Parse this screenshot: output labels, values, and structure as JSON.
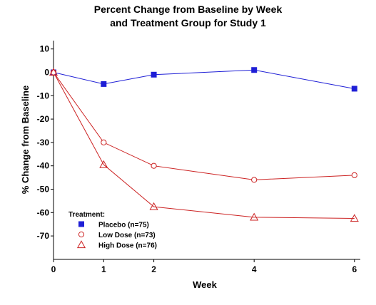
{
  "chart_data": {
    "type": "line",
    "title_lines": [
      "Percent Change from Baseline by Week",
      "and Treatment Group for Study 1"
    ],
    "xlabel": "Week",
    "ylabel": "% Change from Baseline",
    "xlim": [
      0,
      6.1
    ],
    "ylim": [
      -80,
      13
    ],
    "x_ticks": [
      {
        "value": 0,
        "label": "0"
      },
      {
        "value": 1,
        "label": "1"
      },
      {
        "value": 2,
        "label": "2"
      },
      {
        "value": 4,
        "label": "4"
      },
      {
        "value": 6,
        "label": "6"
      }
    ],
    "y_ticks": [
      {
        "value": 10,
        "label": "10"
      },
      {
        "value": 0,
        "label": "0"
      },
      {
        "value": -10,
        "label": "-10"
      },
      {
        "value": -20,
        "label": "-20"
      },
      {
        "value": -30,
        "label": "-30"
      },
      {
        "value": -40,
        "label": "-40"
      },
      {
        "value": -50,
        "label": "-50"
      },
      {
        "value": -60,
        "label": "-60"
      },
      {
        "value": -70,
        "label": "-70"
      }
    ],
    "grid": false,
    "legend_placement": "bottom-left",
    "legend_title": "Treatment:",
    "x": [
      0,
      1,
      2,
      4,
      6
    ],
    "series": [
      {
        "name": "Placebo (n=75)",
        "values": [
          0,
          -5,
          -1,
          1,
          -7
        ],
        "color": "#1f1fd6",
        "marker": "square-filled"
      },
      {
        "name": "Low Dose (n=73)",
        "values": [
          0,
          -30,
          -40,
          -46,
          -44
        ],
        "color": "#cc2222",
        "marker": "circle-open"
      },
      {
        "name": "High Dose (n=76)",
        "values": [
          0,
          -39.5,
          -57.5,
          -62,
          -62.5
        ],
        "color": "#cc2222",
        "marker": "triangle-open"
      }
    ]
  }
}
